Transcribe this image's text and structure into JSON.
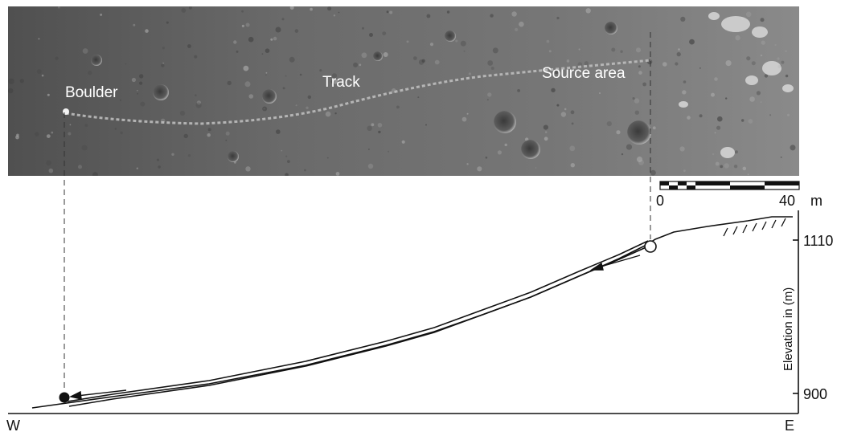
{
  "photo": {
    "labels": {
      "boulder": "Boulder",
      "track": "Track",
      "source": "Source area"
    }
  },
  "scale_bar": {
    "start_label": "0",
    "end_label": "40",
    "unit": "m"
  },
  "profile": {
    "y_axis_title": "Elevation in (m)",
    "tick_upper": "1110",
    "tick_lower": "900",
    "west_label": "W",
    "east_label": "E"
  },
  "colors": {
    "line": "#111111",
    "photo_base": "#6e6e6e"
  }
}
